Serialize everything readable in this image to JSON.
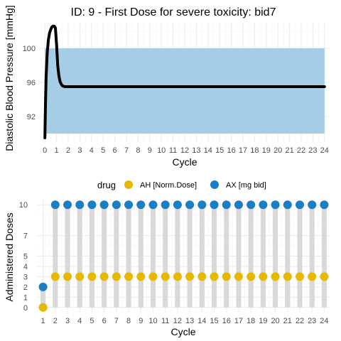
{
  "chart_data": [
    {
      "type": "line",
      "title": "ID: 9 -  First Dose for severe toxicity: bid7",
      "xlabel": "Cycle",
      "ylabel": "Diastolic Blood Pressure [mmHg]",
      "xlim": [
        -0.5,
        24.5
      ],
      "ylim": [
        89,
        103
      ],
      "x_ticks": [
        0,
        1,
        2,
        3,
        4,
        5,
        6,
        7,
        8,
        9,
        10,
        11,
        12,
        13,
        14,
        15,
        16,
        17,
        18,
        19,
        20,
        21,
        22,
        23,
        24
      ],
      "y_ticks": [
        92,
        96,
        100
      ],
      "target_band": {
        "x": [
          0,
          24
        ],
        "y": [
          90,
          100
        ],
        "color": "#a6cde6"
      },
      "line_color": "#000000",
      "series": [
        {
          "x": [
            0,
            0.05,
            0.1,
            0.2,
            0.3,
            0.4,
            0.5,
            0.6,
            0.7,
            0.8,
            0.9,
            1.0,
            1.1,
            1.2,
            1.3,
            1.4,
            1.5,
            1.7,
            2.0,
            3,
            5,
            10,
            15,
            20,
            24
          ],
          "y": [
            89.5,
            93.5,
            96.5,
            99.5,
            101.0,
            101.8,
            102.2,
            102.5,
            102.6,
            102.6,
            102.4,
            100.5,
            98.0,
            96.8,
            96.1,
            95.8,
            95.6,
            95.5,
            95.5,
            95.5,
            95.5,
            95.5,
            95.5,
            95.5,
            95.5
          ]
        }
      ]
    },
    {
      "type": "scatter",
      "xlabel": "Cycle",
      "ylabel": "Administered Doses",
      "xlim": [
        0.5,
        24.5
      ],
      "ylim": [
        -0.5,
        10.5
      ],
      "x_ticks": [
        1,
        2,
        3,
        4,
        5,
        6,
        7,
        8,
        9,
        10,
        11,
        12,
        13,
        14,
        15,
        16,
        17,
        18,
        19,
        20,
        21,
        22,
        23,
        24
      ],
      "y_ticks": [
        0,
        1,
        2,
        3,
        4,
        5,
        7,
        10
      ],
      "stem_color": "#d9d9d9",
      "legend": {
        "title": "drug",
        "position": "top"
      },
      "series": [
        {
          "name": "AH [Norm.Dose]",
          "color": "#e6b800",
          "x": [
            1,
            2,
            3,
            4,
            5,
            6,
            7,
            8,
            9,
            10,
            11,
            12,
            13,
            14,
            15,
            16,
            17,
            18,
            19,
            20,
            21,
            22,
            23,
            24
          ],
          "y": [
            0,
            3,
            3,
            3,
            3,
            3,
            3,
            3,
            3,
            3,
            3,
            3,
            3,
            3,
            3,
            3,
            3,
            3,
            3,
            3,
            3,
            3,
            3,
            3
          ]
        },
        {
          "name": "AX [mg bid]",
          "color": "#1a7ec4",
          "x": [
            1,
            2,
            3,
            4,
            5,
            6,
            7,
            8,
            9,
            10,
            11,
            12,
            13,
            14,
            15,
            16,
            17,
            18,
            19,
            20,
            21,
            22,
            23,
            24
          ],
          "y": [
            2,
            10,
            10,
            10,
            10,
            10,
            10,
            10,
            10,
            10,
            10,
            10,
            10,
            10,
            10,
            10,
            10,
            10,
            10,
            10,
            10,
            10,
            10,
            10
          ]
        }
      ]
    }
  ]
}
